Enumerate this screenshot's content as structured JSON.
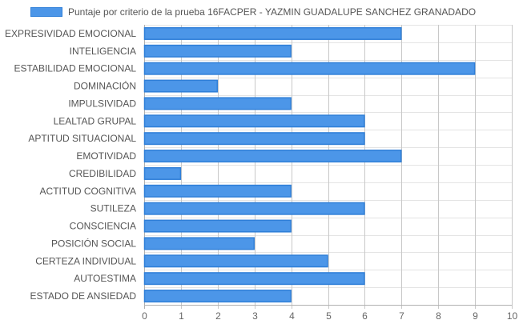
{
  "chart_data": {
    "type": "bar",
    "orientation": "horizontal",
    "title": "",
    "xlabel": "",
    "ylabel": "",
    "categories": [
      "EXPRESIVIDAD EMOCIONAL",
      "INTELIGENCIA",
      "ESTABILIDAD EMOCIONAL",
      "DOMINACIÓN",
      "IMPULSIVIDAD",
      "LEALTAD GRUPAL",
      "APTITUD SITUACIONAL",
      "EMOTIVIDAD",
      "CREDIBILIDAD",
      "ACTITUD COGNITIVA",
      "SUTILEZA",
      "CONSCIENCIA",
      "POSICIÓN SOCIAL",
      "CERTEZA INDIVIDUAL",
      "AUTOESTIMA",
      "ESTADO DE ANSIEDAD"
    ],
    "series": [
      {
        "name": "Puntaje por criterio de la prueba 16FACPER - YAZMIN GUADALUPE SANCHEZ GRANADADO",
        "values": [
          7,
          4,
          9,
          2,
          4,
          6,
          6,
          7,
          1,
          4,
          6,
          4,
          3,
          5,
          6,
          4
        ],
        "color": "#4c96e8",
        "border_color": "#2f7fd8"
      }
    ],
    "xlim": [
      0,
      10
    ],
    "x_ticks": [
      "0",
      "1",
      "2",
      "3",
      "4",
      "5",
      "6",
      "7",
      "8",
      "9",
      "10"
    ],
    "grid": true,
    "legend_position": "top"
  }
}
